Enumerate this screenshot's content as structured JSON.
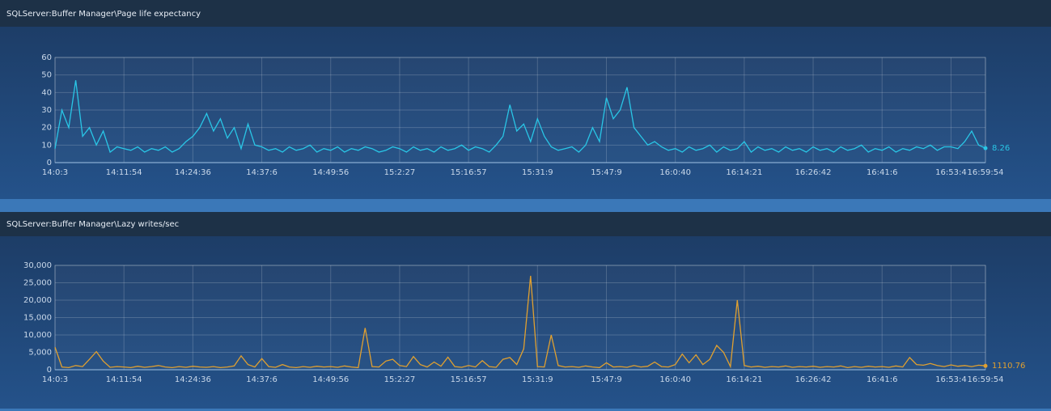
{
  "chart_data": [
    {
      "type": "line",
      "title": "SQLServer:Buffer Manager\\Page life expectancy",
      "categories": [
        "14:0:3",
        null,
        null,
        null,
        null,
        null,
        null,
        null,
        null,
        null,
        "14:11:54",
        null,
        null,
        null,
        null,
        null,
        null,
        null,
        null,
        null,
        "14:24:36",
        null,
        null,
        null,
        null,
        null,
        null,
        null,
        null,
        null,
        "14:37:6",
        null,
        null,
        null,
        null,
        null,
        null,
        null,
        null,
        null,
        "14:49:56",
        null,
        null,
        null,
        null,
        null,
        null,
        null,
        null,
        null,
        "15:2:27",
        null,
        null,
        null,
        null,
        null,
        null,
        null,
        null,
        null,
        "15:16:57",
        null,
        null,
        null,
        null,
        null,
        null,
        null,
        null,
        null,
        "15:31:9",
        null,
        null,
        null,
        null,
        null,
        null,
        null,
        null,
        null,
        "15:47:9",
        null,
        null,
        null,
        null,
        null,
        null,
        null,
        null,
        null,
        "16:0:40",
        null,
        null,
        null,
        null,
        null,
        null,
        null,
        null,
        null,
        "16:14:21",
        null,
        null,
        null,
        null,
        null,
        null,
        null,
        null,
        null,
        "16:26:42",
        null,
        null,
        null,
        null,
        null,
        null,
        null,
        null,
        null,
        "16:41:6",
        null,
        null,
        null,
        null,
        null,
        null,
        null,
        null,
        null,
        "16:53:4",
        null,
        null,
        null,
        null,
        "16:59:54"
      ],
      "values": [
        8,
        30,
        20,
        47,
        15,
        20,
        10,
        18,
        6,
        9,
        8,
        7,
        9,
        6,
        8,
        7,
        9,
        6,
        8,
        12,
        15,
        20,
        28,
        18,
        25,
        14,
        20,
        8,
        22,
        10,
        9,
        7,
        8,
        6,
        9,
        7,
        8,
        10,
        6,
        8,
        7,
        9,
        6,
        8,
        7,
        9,
        8,
        6,
        7,
        9,
        8,
        6,
        9,
        7,
        8,
        6,
        9,
        7,
        8,
        10,
        7,
        9,
        8,
        6,
        10,
        15,
        33,
        18,
        22,
        12,
        25,
        15,
        9,
        7,
        8,
        9,
        6,
        10,
        20,
        12,
        37,
        25,
        30,
        43,
        20,
        15,
        10,
        12,
        9,
        7,
        8,
        6,
        9,
        7,
        8,
        10,
        6,
        9,
        7,
        8,
        12,
        6,
        9,
        7,
        8,
        6,
        9,
        7,
        8,
        6,
        9,
        7,
        8,
        6,
        9,
        7,
        8,
        10,
        6,
        8,
        7,
        9,
        6,
        8,
        7,
        9,
        8,
        10,
        7,
        9,
        9,
        8,
        12,
        18,
        10,
        8.26
      ],
      "color": "#29c6e6",
      "ylim": [
        0,
        60
      ],
      "yticks": [
        0,
        10,
        20,
        30,
        40,
        50,
        60
      ],
      "grid": true
    },
    {
      "type": "line",
      "title": "SQLServer:Buffer Manager\\Lazy writes/sec",
      "categories": [
        "14:0:3",
        null,
        null,
        null,
        null,
        null,
        null,
        null,
        null,
        null,
        "14:11:54",
        null,
        null,
        null,
        null,
        null,
        null,
        null,
        null,
        null,
        "14:24:36",
        null,
        null,
        null,
        null,
        null,
        null,
        null,
        null,
        null,
        "14:37:6",
        null,
        null,
        null,
        null,
        null,
        null,
        null,
        null,
        null,
        "14:49:56",
        null,
        null,
        null,
        null,
        null,
        null,
        null,
        null,
        null,
        "15:2:27",
        null,
        null,
        null,
        null,
        null,
        null,
        null,
        null,
        null,
        "15:16:57",
        null,
        null,
        null,
        null,
        null,
        null,
        null,
        null,
        null,
        "15:31:9",
        null,
        null,
        null,
        null,
        null,
        null,
        null,
        null,
        null,
        "15:47:9",
        null,
        null,
        null,
        null,
        null,
        null,
        null,
        null,
        null,
        "16:0:40",
        null,
        null,
        null,
        null,
        null,
        null,
        null,
        null,
        null,
        "16:14:21",
        null,
        null,
        null,
        null,
        null,
        null,
        null,
        null,
        null,
        "16:26:42",
        null,
        null,
        null,
        null,
        null,
        null,
        null,
        null,
        null,
        "16:41:6",
        null,
        null,
        null,
        null,
        null,
        null,
        null,
        null,
        null,
        "16:53:4",
        null,
        null,
        null,
        null,
        "16:59:54"
      ],
      "values": [
        6500,
        800,
        600,
        1200,
        900,
        3000,
        5200,
        2500,
        700,
        900,
        800,
        600,
        1000,
        700,
        900,
        1200,
        800,
        600,
        900,
        700,
        1000,
        800,
        700,
        900,
        600,
        800,
        1100,
        4000,
        1500,
        800,
        3200,
        900,
        700,
        1500,
        800,
        600,
        900,
        700,
        1000,
        800,
        900,
        700,
        1100,
        800,
        600,
        12000,
        900,
        800,
        2500,
        3000,
        1200,
        900,
        3800,
        1500,
        800,
        2200,
        1000,
        3600,
        900,
        700,
        1200,
        800,
        2600,
        900,
        700,
        3000,
        3500,
        1500,
        6000,
        27000,
        900,
        800,
        10000,
        1200,
        800,
        900,
        700,
        1100,
        800,
        600,
        2000,
        800,
        900,
        700,
        1200,
        800,
        1000,
        2200,
        900,
        800,
        1500,
        4500,
        2000,
        4300,
        1500,
        3000,
        7000,
        5000,
        900,
        20000,
        1200,
        800,
        1000,
        700,
        900,
        800,
        1100,
        700,
        900,
        800,
        1000,
        700,
        900,
        800,
        1100,
        600,
        900,
        700,
        1000,
        800,
        900,
        700,
        1100,
        800,
        3500,
        1500,
        1300,
        1800,
        1200,
        900,
        1400,
        1000,
        1200,
        900,
        1300,
        1110.76
      ],
      "color": "#e0a030",
      "ylim": [
        0,
        30000
      ],
      "yticks": [
        0,
        {
          "value": 5000,
          "label": "5,000"
        },
        {
          "value": 10000,
          "label": "10,000"
        },
        {
          "value": 15000,
          "label": "15,000"
        },
        {
          "value": 20000,
          "label": "20,000"
        },
        {
          "value": 25000,
          "label": "25,000"
        },
        {
          "value": 30000,
          "label": "30,000"
        }
      ],
      "grid": true
    }
  ]
}
